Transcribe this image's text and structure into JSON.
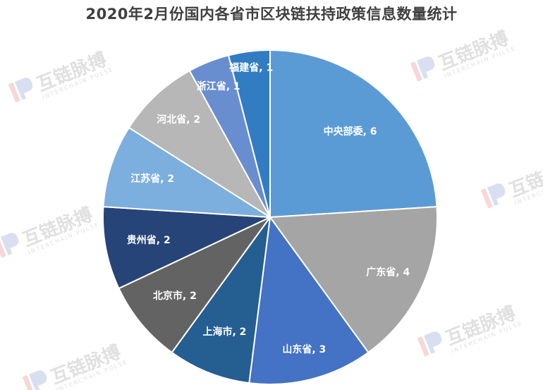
{
  "title": "2020年2月份国内各省市区块链扶持政策信息数量统计",
  "chart_data": {
    "type": "pie",
    "title": "2020年2月份国内各省市区块链扶持政策信息数量统计",
    "slices": [
      {
        "label": "中央部委",
        "value": 6,
        "color": "#5b9bd5"
      },
      {
        "label": "广东省",
        "value": 4,
        "color": "#a5a5a5"
      },
      {
        "label": "山东省",
        "value": 3,
        "color": "#4472c4"
      },
      {
        "label": "上海市",
        "value": 2,
        "color": "#255e91"
      },
      {
        "label": "北京市",
        "value": 2,
        "color": "#636363"
      },
      {
        "label": "贵州省",
        "value": 2,
        "color": "#264478"
      },
      {
        "label": "江苏省",
        "value": 2,
        "color": "#7cafdd"
      },
      {
        "label": "河北省",
        "value": 2,
        "color": "#b7b7b7"
      },
      {
        "label": "浙江省",
        "value": 1,
        "color": "#698ed0"
      },
      {
        "label": "福建省",
        "value": 1,
        "color": "#327dc2"
      }
    ],
    "data_label_format": "category, value",
    "legend": "none"
  },
  "watermark": {
    "brand_cn": "互链脉搏",
    "brand_en": "INTERCHAIN PULSE"
  }
}
